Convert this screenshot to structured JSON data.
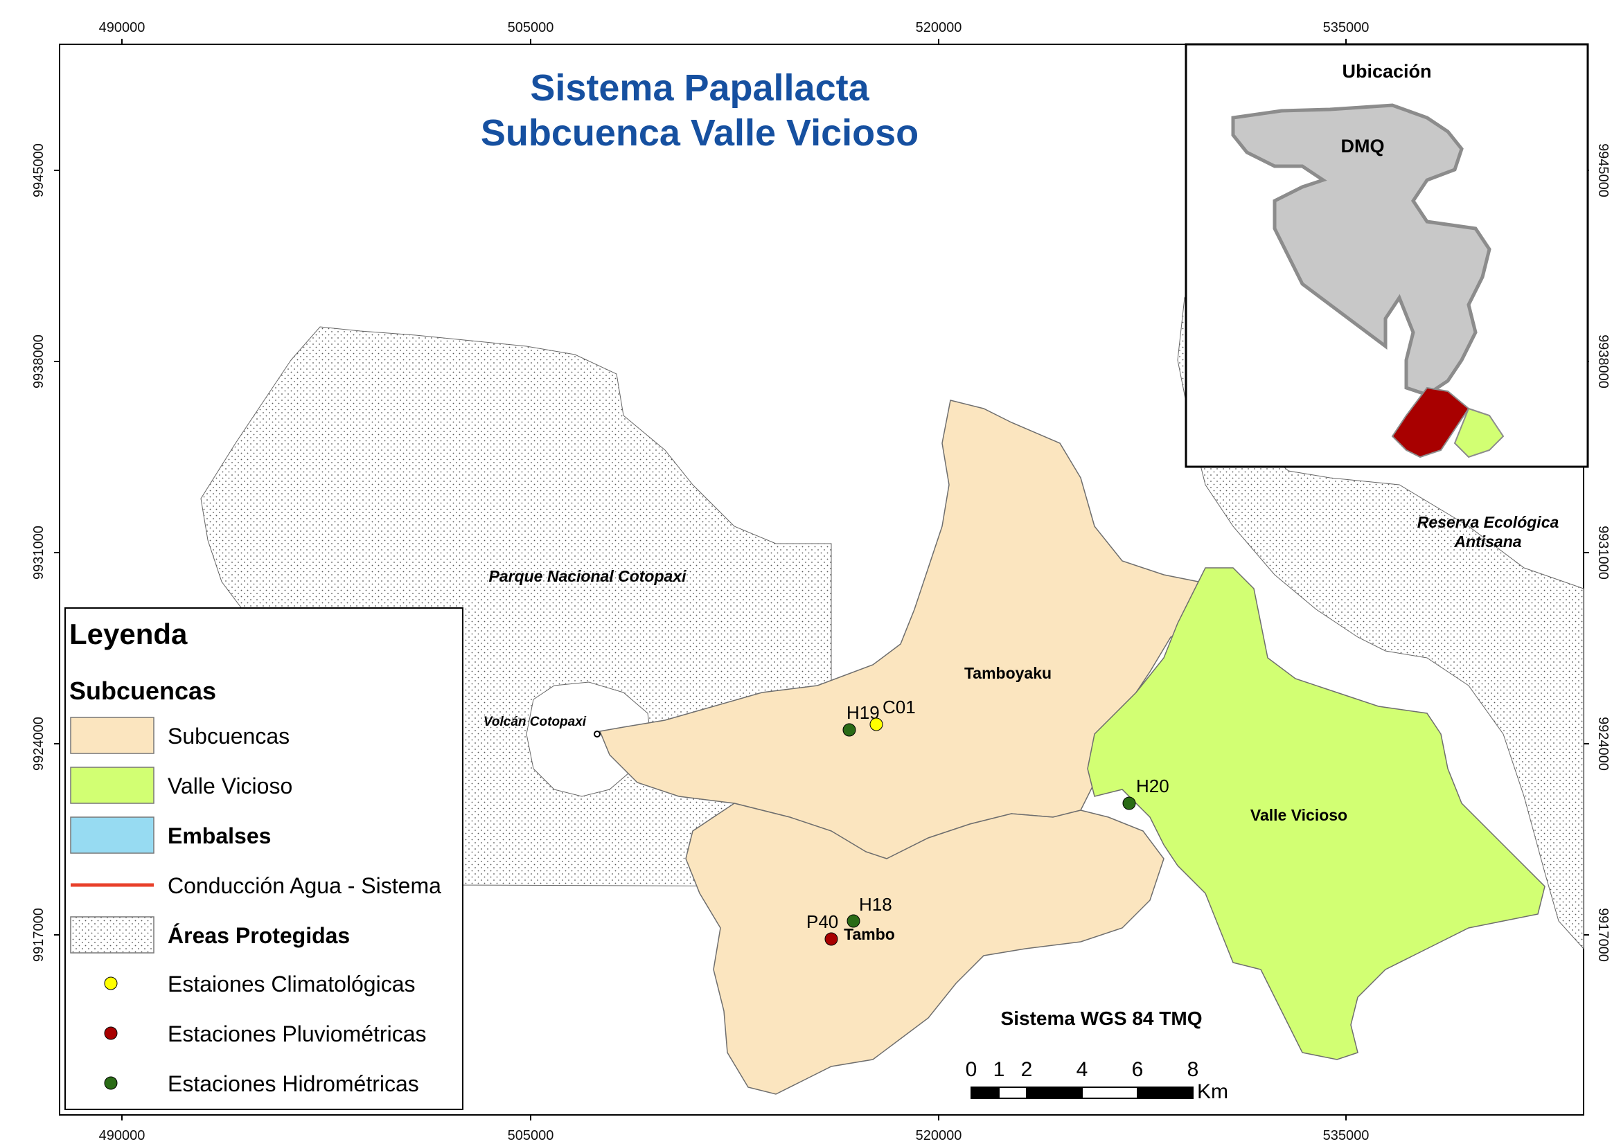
{
  "map": {
    "title_line1": "Sistema Papallacta",
    "title_line2": "Subcuenca Valle Vicioso",
    "crs": "Sistema WGS 84 TMQ",
    "x_ticks": [
      "490000",
      "505000",
      "520000",
      "535000"
    ],
    "y_ticks": [
      "9945000",
      "9938000",
      "9931000",
      "9924000",
      "9917000"
    ],
    "colors": {
      "subcuencas": "#fbe5bf",
      "valle_vicioso": "#d2ff73",
      "embalses": "#97dbf2",
      "conduccion": "#e8402a",
      "climatologica": "#ffff00",
      "pluviometrica": "#a80000",
      "hidrometrica": "#2a6b16",
      "title": "#1650a0",
      "dmq": "#c8c8c8",
      "inset_red": "#a80000",
      "inset_green": "#d2ff73"
    }
  },
  "places": {
    "parque": "Parque Nacional Cotopaxi",
    "volcan": "Volcán Cotopaxi",
    "reserva_line1": "Reserva Ecológica",
    "reserva_line2": "Antisana",
    "tamboyaku": "Tamboyaku",
    "valle": "Valle Vicioso",
    "tambo": "Tambo"
  },
  "stations": {
    "h19": "H19",
    "c01": "C01",
    "h20": "H20",
    "h18": "H18",
    "p40": "P40"
  },
  "inset": {
    "title": "Ubicación",
    "dmq": "DMQ"
  },
  "legend": {
    "title": "Leyenda",
    "subtitle": "Subcuencas",
    "items": [
      {
        "label": "Subcuencas"
      },
      {
        "label": "Valle Vicioso"
      },
      {
        "label": "Embalses"
      },
      {
        "label": "Conducción Agua - Sistema"
      },
      {
        "label": "Áreas Protegidas"
      },
      {
        "label": "Estaiones Climatológicas"
      },
      {
        "label": "Estaciones Pluviométricas"
      },
      {
        "label": "Estaciones Hidrométricas"
      }
    ]
  },
  "scalebar": {
    "labels": [
      "0",
      "1",
      "2",
      "4",
      "6",
      "8"
    ],
    "unit": "Km"
  }
}
